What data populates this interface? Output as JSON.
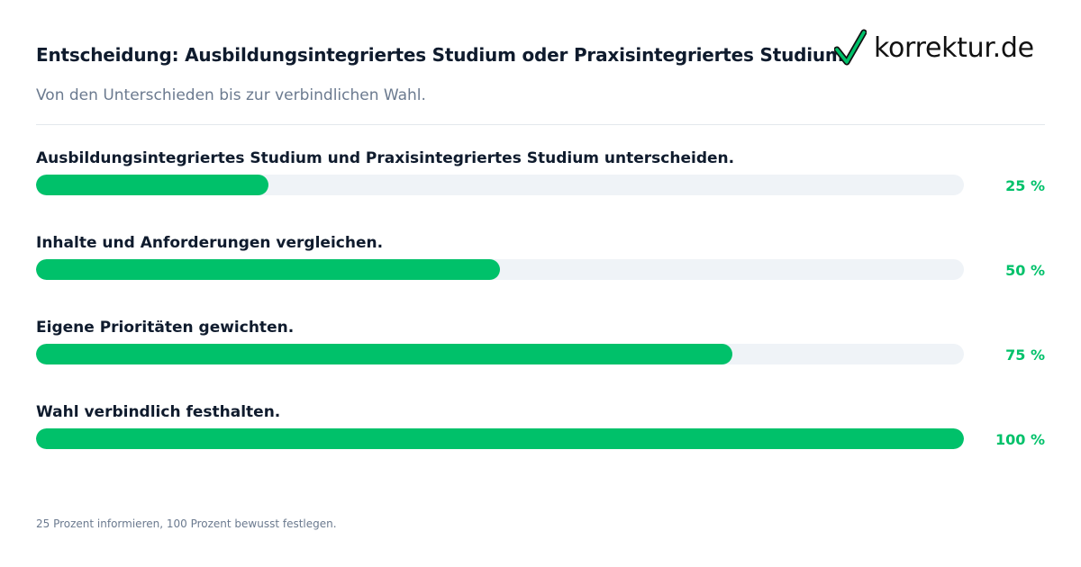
{
  "header": {
    "title": "Entscheidung: Ausbildungsintegriertes Studium oder Praxisintegriertes Studium",
    "subtitle": "Von den Unterschieden bis zur verbindlichen Wahl."
  },
  "logo": {
    "text": "korrektur.de",
    "icon": "checkmark-icon",
    "check_color": "#00c16a"
  },
  "colors": {
    "accent": "#00c16a",
    "track": "#eff3f7",
    "text": "#0f1b2d",
    "muted": "#6b7a8f"
  },
  "chart_data": {
    "type": "bar",
    "orientation": "horizontal",
    "categories": [
      "Ausbildungsintegriertes Studium und Praxisintegriertes Studium unterscheiden.",
      "Inhalte und Anforderungen vergleichen.",
      "Eigene Prioritäten gewichten.",
      "Wahl verbindlich festhalten."
    ],
    "values": [
      25,
      50,
      75,
      100
    ],
    "value_labels": [
      "25 %",
      "50 %",
      "75 %",
      "100 %"
    ],
    "xlim": [
      0,
      100
    ],
    "grid": false
  },
  "footer": {
    "note": "25 Prozent informieren, 100 Prozent bewusst festlegen."
  }
}
